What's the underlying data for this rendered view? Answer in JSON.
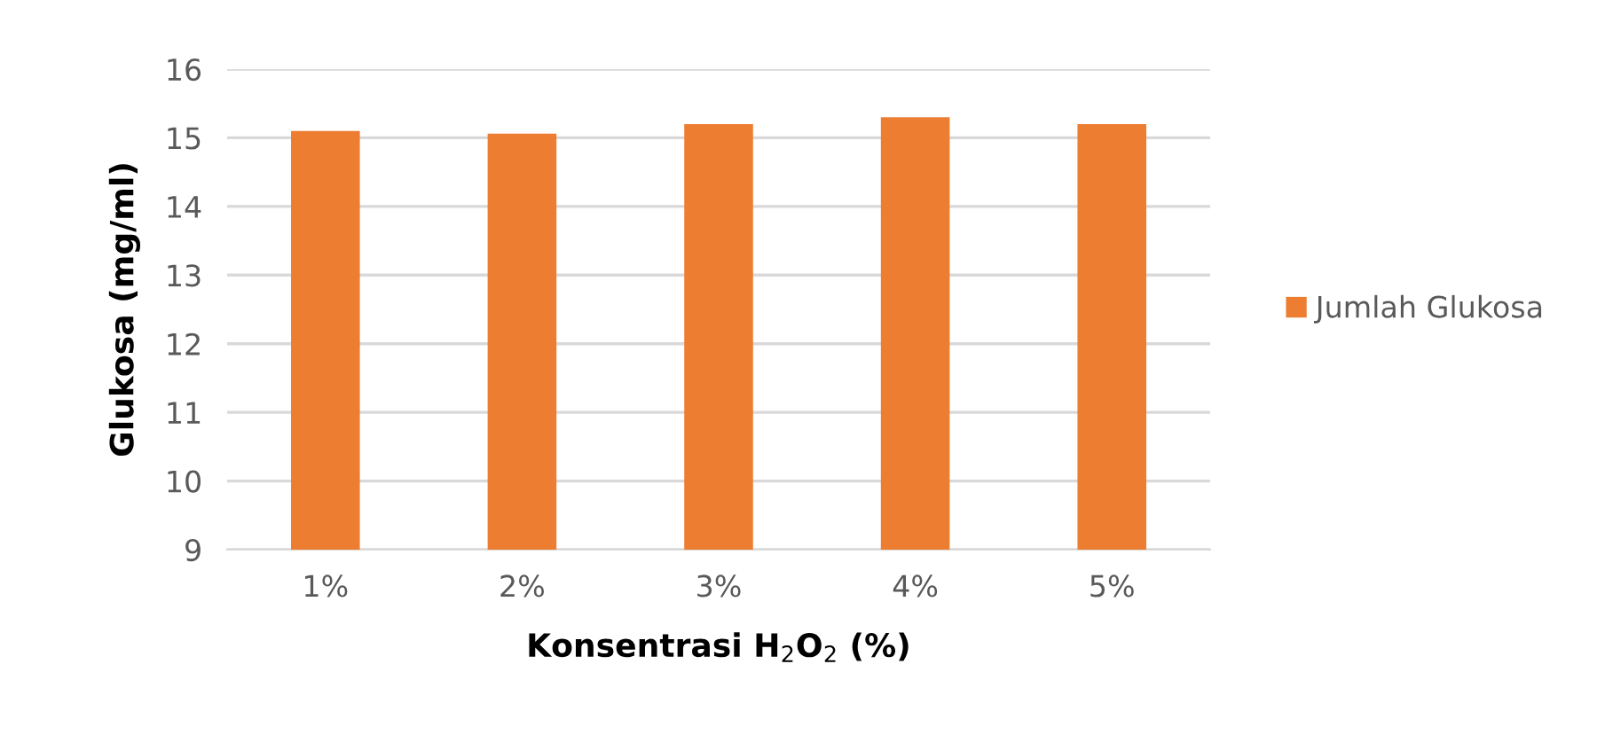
{
  "chart_data": {
    "type": "bar",
    "xlabel": "Konsentrasi H$_{2}$O$_{2}$ (%)",
    "ylabel": "Glukosa (mg/ml)",
    "categories": [
      "1%",
      "2%",
      "3%",
      "4%",
      "5%"
    ],
    "series": [
      {
        "name": "Jumlah Glukosa",
        "color": "#ed7d31",
        "values": [
          15.1,
          15.06,
          15.2,
          15.3,
          15.2
        ]
      }
    ],
    "ylim": [
      9,
      16
    ],
    "yticks": [
      9,
      10,
      11,
      12,
      13,
      14,
      15,
      16
    ],
    "grid": "y",
    "legend": "right"
  }
}
